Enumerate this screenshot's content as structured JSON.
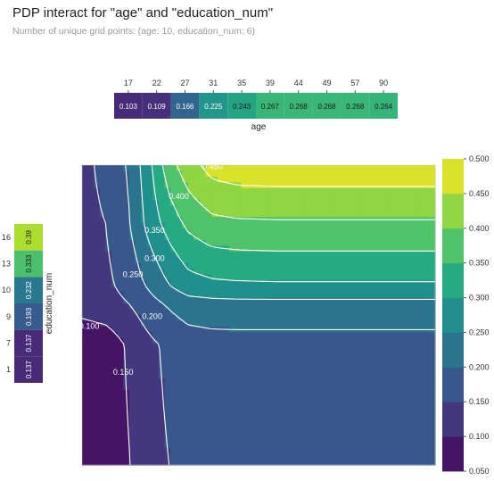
{
  "title": "PDP interact for \"age\" and \"education_num\"",
  "subtitle": "Number of unique grid points: (age: 10, education_num: 6)",
  "chart_data": [
    {
      "type": "heatmap",
      "name": "age-marginal",
      "xlabel": "age",
      "categories": [
        "17",
        "22",
        "27",
        "31",
        "35",
        "39",
        "44",
        "49",
        "57",
        "90"
      ],
      "values": [
        0.103,
        0.109,
        0.166,
        0.225,
        0.243,
        0.267,
        0.268,
        0.268,
        0.268,
        0.264
      ],
      "value_labels": [
        "0.103",
        "0.109",
        "0.166",
        "0.225",
        "0.243",
        "0.267",
        "0.268",
        "0.268",
        "0.268",
        "0.264"
      ]
    },
    {
      "type": "heatmap",
      "name": "education-num-marginal",
      "ylabel": "education_num",
      "categories": [
        "16",
        "13",
        "10",
        "9",
        "7",
        "1"
      ],
      "values": [
        0.39,
        0.333,
        0.232,
        0.193,
        0.137,
        0.137
      ],
      "value_labels": [
        "0.39",
        "0.333",
        "0.232",
        "0.193",
        "0.137",
        "0.137"
      ]
    },
    {
      "type": "heatmap",
      "name": "interaction-contour",
      "x": [
        17,
        22,
        27,
        31,
        35,
        39,
        44,
        49,
        57,
        90
      ],
      "y": [
        1,
        7,
        9,
        10,
        13,
        16
      ],
      "z": [
        [
          0.06,
          0.07,
          0.1,
          0.135,
          0.15,
          0.165,
          0.17,
          0.171,
          0.171,
          0.171
        ],
        [
          0.06,
          0.07,
          0.11,
          0.14,
          0.16,
          0.175,
          0.18,
          0.18,
          0.18,
          0.18
        ],
        [
          0.12,
          0.13,
          0.15,
          0.18,
          0.205,
          0.225,
          0.23,
          0.232,
          0.232,
          0.232
        ],
        [
          0.13,
          0.14,
          0.17,
          0.21,
          0.25,
          0.28,
          0.29,
          0.293,
          0.295,
          0.295
        ],
        [
          0.14,
          0.15,
          0.2,
          0.27,
          0.32,
          0.36,
          0.385,
          0.39,
          0.392,
          0.392
        ],
        [
          0.14,
          0.16,
          0.21,
          0.29,
          0.38,
          0.43,
          0.47,
          0.48,
          0.482,
          0.482
        ]
      ],
      "contour_levels": [
        0.05,
        0.1,
        0.15,
        0.2,
        0.25,
        0.3,
        0.35,
        0.4,
        0.45,
        0.5
      ],
      "contour_labels": [
        {
          "text": "0.100",
          "x": 18.5,
          "y": 7.8
        },
        {
          "text": "0.150",
          "x": 25.5,
          "y": 5.5
        },
        {
          "text": "0.200",
          "x": 31.5,
          "y": 8.3
        },
        {
          "text": "0.250",
          "x": 27.5,
          "y": 10.4
        },
        {
          "text": "0.300",
          "x": 32.0,
          "y": 11.2
        },
        {
          "text": "0.350",
          "x": 32.0,
          "y": 12.6
        },
        {
          "text": "0.400",
          "x": 37.0,
          "y": 14.3
        },
        {
          "text": "0.450",
          "x": 44.0,
          "y": 15.8
        }
      ],
      "colorbar": {
        "ticks": [
          "0.050",
          "0.100",
          "0.150",
          "0.200",
          "0.250",
          "0.300",
          "0.350",
          "0.400",
          "0.450",
          "0.500"
        ],
        "range": [
          0.05,
          0.5
        ]
      }
    }
  ]
}
